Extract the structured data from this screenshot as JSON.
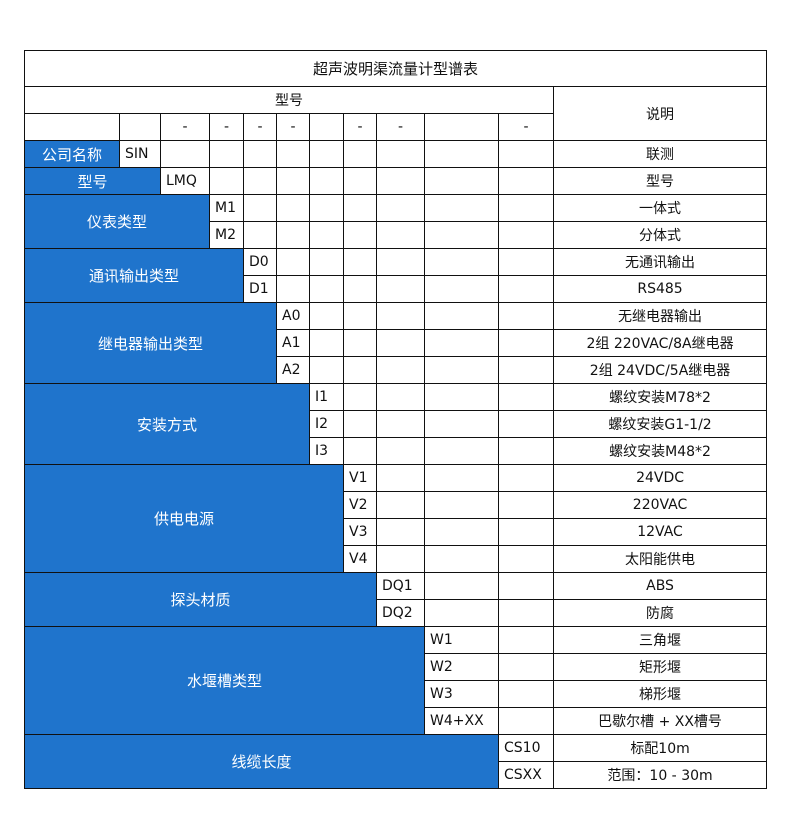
{
  "title": "超声波明渠流量计型谱表",
  "header": {
    "model_label": "型号",
    "description_label": "说明",
    "separators": [
      "",
      "",
      "-",
      "-",
      "-",
      "-",
      "",
      "-",
      "-",
      "",
      "-"
    ]
  },
  "colors": {
    "label_bg": "#1f74cc",
    "label_text": "#ffffff",
    "border": "#111111"
  },
  "groups": [
    {
      "label": "公司名称",
      "items": [
        {
          "code": "SIN",
          "desc": "联测"
        }
      ]
    },
    {
      "label": "型号",
      "items": [
        {
          "code": "LMQ",
          "desc": "型号"
        }
      ]
    },
    {
      "label": "仪表类型",
      "items": [
        {
          "code": "M1",
          "desc": "一体式"
        },
        {
          "code": "M2",
          "desc": "分体式"
        }
      ]
    },
    {
      "label": "通讯输出类型",
      "items": [
        {
          "code": "D0",
          "desc": "无通讯输出"
        },
        {
          "code": "D1",
          "desc": "RS485"
        }
      ]
    },
    {
      "label": "继电器输出类型",
      "items": [
        {
          "code": "A0",
          "desc": "无继电器输出"
        },
        {
          "code": "A1",
          "desc": "2组 220VAC/8A继电器"
        },
        {
          "code": "A2",
          "desc": "2组 24VDC/5A继电器"
        }
      ]
    },
    {
      "label": "安装方式",
      "items": [
        {
          "code": "I1",
          "desc": "螺纹安装M78*2"
        },
        {
          "code": "I2",
          "desc": "螺纹安装G1-1/2"
        },
        {
          "code": "I3",
          "desc": "螺纹安装M48*2"
        }
      ]
    },
    {
      "label": "供电电源",
      "items": [
        {
          "code": "V1",
          "desc": "24VDC"
        },
        {
          "code": "V2",
          "desc": "220VAC"
        },
        {
          "code": "V3",
          "desc": "12VAC"
        },
        {
          "code": "V4",
          "desc": "太阳能供电"
        }
      ]
    },
    {
      "label": "探头材质",
      "items": [
        {
          "code": "DQ1",
          "desc": "ABS"
        },
        {
          "code": "DQ2",
          "desc": "防腐"
        }
      ]
    },
    {
      "label": "水堰槽类型",
      "items": [
        {
          "code": "W1",
          "desc": "三角堰"
        },
        {
          "code": "W2",
          "desc": "矩形堰"
        },
        {
          "code": "W3",
          "desc": "梯形堰"
        },
        {
          "code": "W4+XX",
          "desc": "巴歇尔槽 + XX槽号"
        }
      ]
    },
    {
      "label": "线缆长度",
      "items": [
        {
          "code": "CS10",
          "desc": "标配10m"
        },
        {
          "code": "CSXX",
          "desc": "范围：10 - 30m"
        }
      ]
    }
  ]
}
